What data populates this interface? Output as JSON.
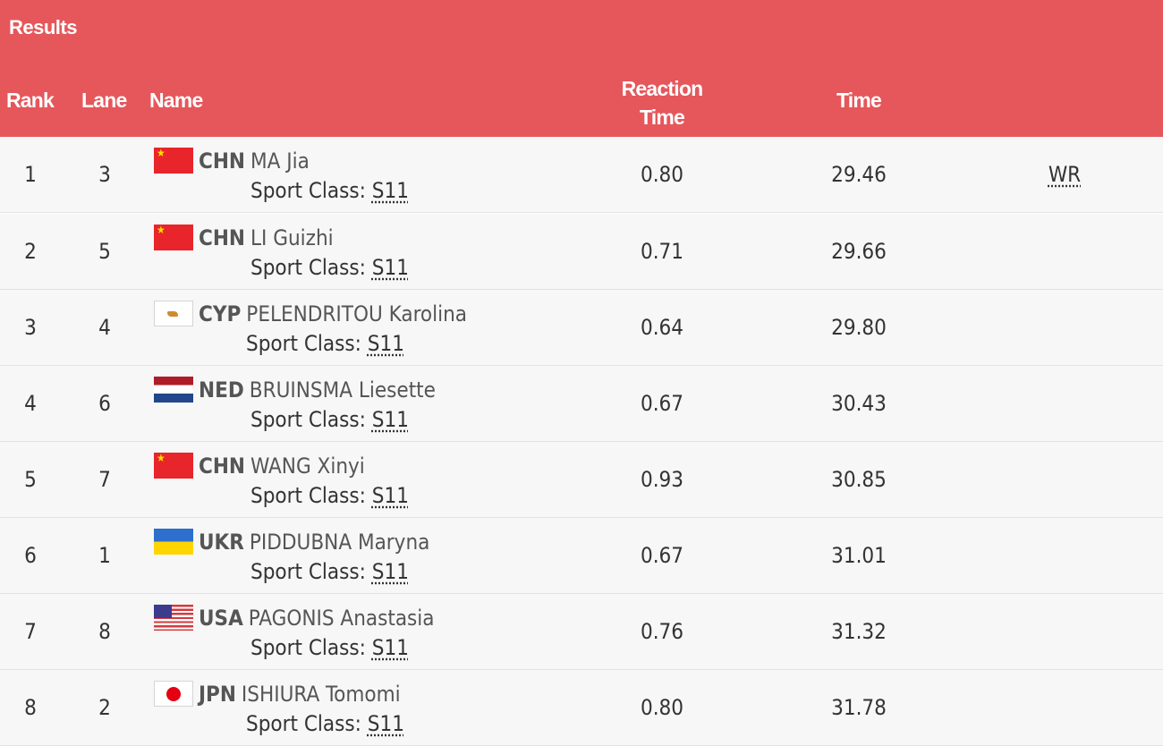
{
  "header": {
    "title": "Results",
    "columns": {
      "rank": "Rank",
      "lane": "Lane",
      "name": "Name",
      "reaction_line1": "Reaction",
      "reaction_line2": "Time",
      "time": "Time"
    }
  },
  "sport_class_label": "Sport Class:",
  "rows": [
    {
      "rank": "1",
      "lane": "3",
      "noc": "CHN",
      "name": "MA Jia",
      "sport_class": "S11",
      "reaction": "0.80",
      "time": "29.46",
      "record": "WR",
      "flag": "china-flag-icon"
    },
    {
      "rank": "2",
      "lane": "5",
      "noc": "CHN",
      "name": "LI Guizhi",
      "sport_class": "S11",
      "reaction": "0.71",
      "time": "29.66",
      "record": "",
      "flag": "china-flag-icon"
    },
    {
      "rank": "3",
      "lane": "4",
      "noc": "CYP",
      "name": "PELENDRITOU Karolina",
      "sport_class": "S11",
      "reaction": "0.64",
      "time": "29.80",
      "record": "",
      "flag": "cyprus-flag-icon"
    },
    {
      "rank": "4",
      "lane": "6",
      "noc": "NED",
      "name": "BRUINSMA Liesette",
      "sport_class": "S11",
      "reaction": "0.67",
      "time": "30.43",
      "record": "",
      "flag": "netherlands-flag-icon"
    },
    {
      "rank": "5",
      "lane": "7",
      "noc": "CHN",
      "name": "WANG Xinyi",
      "sport_class": "S11",
      "reaction": "0.93",
      "time": "30.85",
      "record": "",
      "flag": "china-flag-icon"
    },
    {
      "rank": "6",
      "lane": "1",
      "noc": "UKR",
      "name": "PIDDUBNA Maryna",
      "sport_class": "S11",
      "reaction": "0.67",
      "time": "31.01",
      "record": "",
      "flag": "ukraine-flag-icon"
    },
    {
      "rank": "7",
      "lane": "8",
      "noc": "USA",
      "name": "PAGONIS Anastasia",
      "sport_class": "S11",
      "reaction": "0.76",
      "time": "31.32",
      "record": "",
      "flag": "usa-flag-icon"
    },
    {
      "rank": "8",
      "lane": "2",
      "noc": "JPN",
      "name": "ISHIURA Tomomi",
      "sport_class": "S11",
      "reaction": "0.80",
      "time": "31.78",
      "record": "",
      "flag": "japan-flag-icon"
    }
  ],
  "colors": {
    "header_bg": "#e5575b",
    "row_bg": "#f7f7f7",
    "text": "#333333"
  }
}
